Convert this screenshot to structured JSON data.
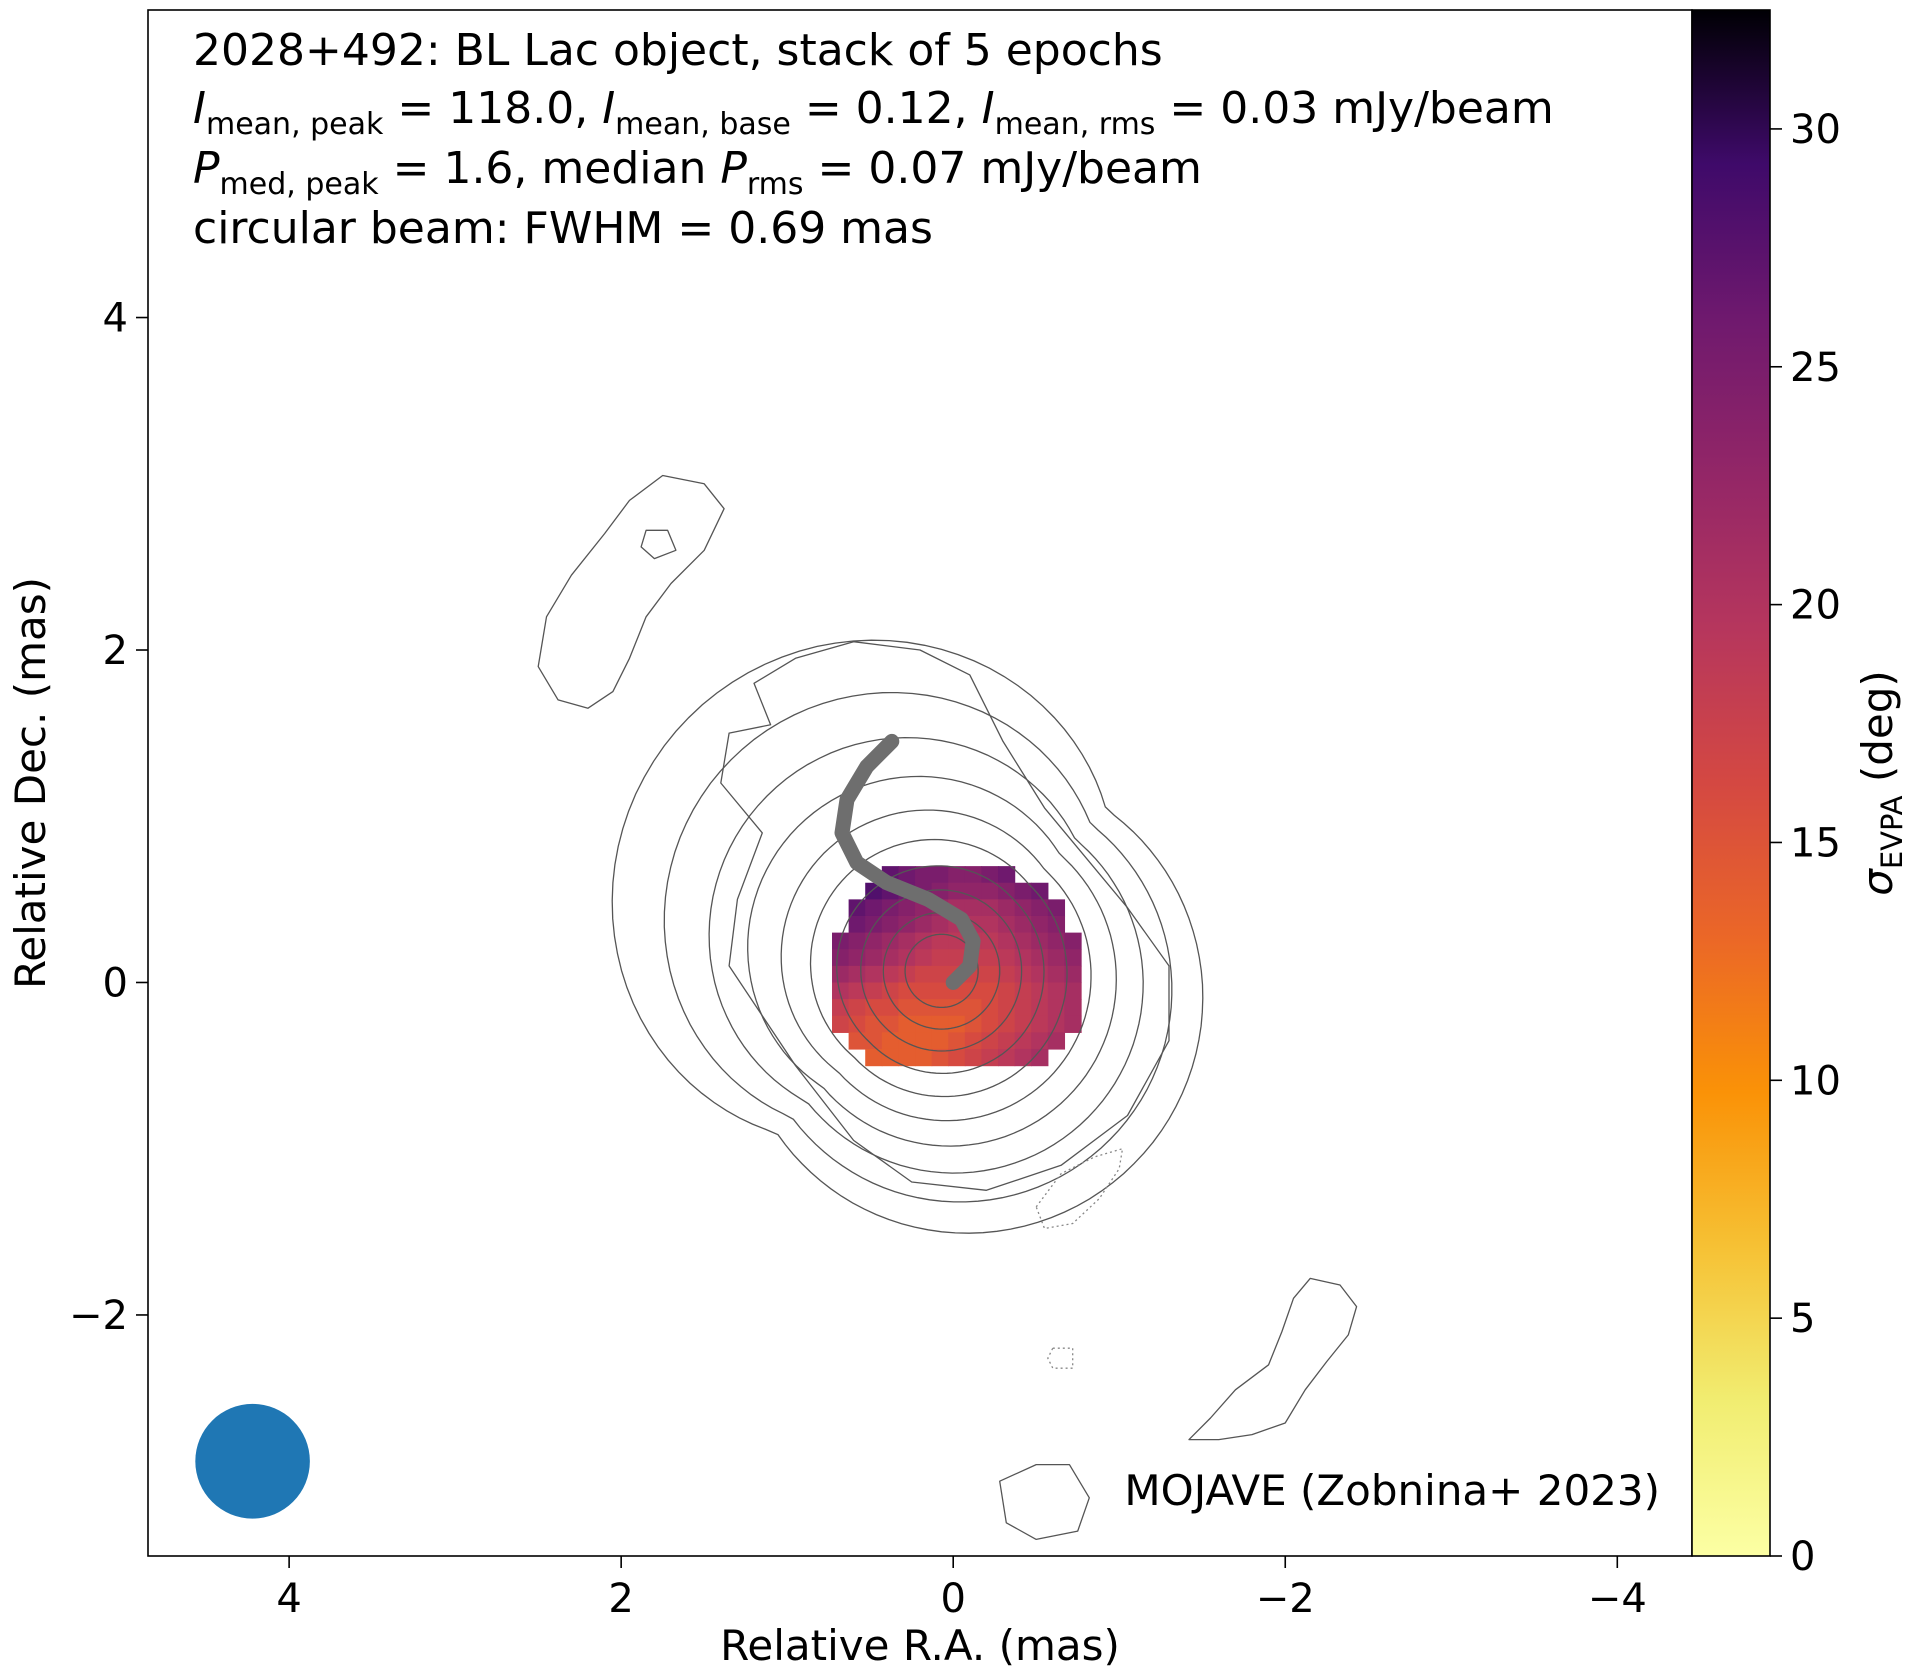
{
  "chart_data": {
    "type": "heatmap",
    "annotation_lines": [
      {
        "text": "2028+492: BL Lac object, stack of 5 epochs"
      },
      {
        "parts": [
          {
            "t": "I",
            "i": true
          },
          {
            "t": "mean, peak",
            "sub": true
          },
          {
            "t": " = 118.0, "
          },
          {
            "t": "I",
            "i": true
          },
          {
            "t": "mean, base",
            "sub": true
          },
          {
            "t": " = 0.12, "
          },
          {
            "t": "I",
            "i": true
          },
          {
            "t": "mean, rms",
            "sub": true
          },
          {
            "t": " = 0.03 mJy/beam"
          }
        ]
      },
      {
        "parts": [
          {
            "t": "P",
            "i": true
          },
          {
            "t": "med, peak",
            "sub": true
          },
          {
            "t": " = 1.6, median "
          },
          {
            "t": "P",
            "i": true
          },
          {
            "t": "rms",
            "sub": true
          },
          {
            "t": " = 0.07 mJy/beam"
          }
        ]
      },
      {
        "text": "circular beam: FWHM = 0.69 mas"
      }
    ],
    "credit": "MOJAVE (Zobnina+ 2023)",
    "xlabel": "Relative R.A. (mas)",
    "ylabel": "Relative Dec. (mas)",
    "xlim": [
      4.85,
      -4.45
    ],
    "ylim": [
      -3.45,
      5.85
    ],
    "xticks": [
      4,
      2,
      0,
      -2,
      -4
    ],
    "xtick_labels": [
      "4",
      "2",
      "0",
      "−2",
      "−4"
    ],
    "yticks": [
      -2,
      0,
      2,
      4
    ],
    "ytick_labels": [
      "−2",
      "0",
      "2",
      "4"
    ],
    "colorbar": {
      "label_main": "σ",
      "label_sub": "EVPA",
      "label_unit": " (deg)",
      "cmap": "inferno_r",
      "vmin": 0,
      "vmax": 32.5,
      "ticks": [
        0,
        5,
        10,
        15,
        20,
        25,
        30
      ],
      "tick_labels": [
        "0",
        "5",
        "10",
        "15",
        "20",
        "25",
        "30"
      ]
    },
    "beam": {
      "ra": 4.22,
      "dec": -2.88,
      "fwhm": 0.69,
      "color": "#1f77b4"
    },
    "contour_color": "#555555",
    "contour_levels": 10,
    "contour_core": {
      "ra": 0.07,
      "dec": 0.07
    },
    "ridge_color": "#6e6e6e",
    "ridge_line": [
      [
        0.0,
        0.0
      ],
      [
        -0.1,
        0.1
      ],
      [
        -0.12,
        0.25
      ],
      [
        -0.05,
        0.38
      ],
      [
        0.15,
        0.5
      ],
      [
        0.4,
        0.6
      ],
      [
        0.58,
        0.72
      ],
      [
        0.67,
        0.9
      ],
      [
        0.64,
        1.1
      ],
      [
        0.52,
        1.3
      ],
      [
        0.37,
        1.45
      ]
    ],
    "evpa_pixel_size": 0.1,
    "evpa_region": {
      "ra": 0.08,
      "dec": 0.06,
      "radius": 0.62
    },
    "evpa_grid_rows": [
      {
        "dec": 0.65,
        "ra_from": 0.43,
        "values": [
          27,
          26,
          25,
          25,
          24,
          24,
          25,
          26
        ]
      },
      {
        "dec": 0.55,
        "ra_from": 0.53,
        "values": [
          28,
          27,
          26,
          25,
          24,
          23,
          23,
          23,
          24,
          25,
          26
        ]
      },
      {
        "dec": 0.45,
        "ra_from": 0.63,
        "values": [
          27,
          26,
          25,
          24,
          23,
          22,
          21,
          21,
          21,
          22,
          23,
          24,
          25
        ]
      },
      {
        "dec": 0.35,
        "ra_from": 0.63,
        "values": [
          26,
          25,
          24,
          23,
          22,
          21,
          20,
          20,
          20,
          21,
          22,
          23,
          24
        ]
      },
      {
        "dec": 0.25,
        "ra_from": 0.73,
        "values": [
          25,
          24,
          23,
          22,
          21,
          20,
          19,
          19,
          19,
          19,
          20,
          21,
          22,
          23,
          24
        ]
      },
      {
        "dec": 0.15,
        "ra_from": 0.73,
        "values": [
          24,
          23,
          22,
          21,
          20,
          19,
          18,
          18,
          18,
          18,
          19,
          20,
          21,
          22,
          23
        ]
      },
      {
        "dec": 0.05,
        "ra_from": 0.73,
        "values": [
          22,
          21,
          20,
          19,
          18,
          17,
          17,
          17,
          17,
          17,
          18,
          19,
          20,
          21,
          22
        ]
      },
      {
        "dec": -0.05,
        "ra_from": 0.73,
        "values": [
          20,
          19,
          18,
          17,
          16,
          16,
          16,
          16,
          16,
          16,
          17,
          18,
          19,
          20,
          21
        ]
      },
      {
        "dec": -0.15,
        "ra_from": 0.73,
        "values": [
          18,
          17,
          16,
          16,
          15,
          15,
          15,
          15,
          15,
          16,
          17,
          18,
          19,
          20,
          21
        ]
      },
      {
        "dec": -0.25,
        "ra_from": 0.73,
        "values": [
          17,
          16,
          15,
          15,
          14,
          14,
          14,
          14,
          15,
          16,
          17,
          18,
          19,
          20,
          21
        ]
      },
      {
        "dec": -0.35,
        "ra_from": 0.63,
        "values": [
          15,
          15,
          14,
          14,
          14,
          14,
          15,
          16,
          17,
          18,
          19,
          20,
          21
        ]
      },
      {
        "dec": -0.45,
        "ra_from": 0.53,
        "values": [
          14,
          14,
          14,
          14,
          15,
          16,
          17,
          18,
          19,
          20,
          21
        ]
      }
    ],
    "islands": [
      {
        "style": "solid",
        "points": [
          [
            2.5,
            1.9
          ],
          [
            2.45,
            2.2
          ],
          [
            2.3,
            2.45
          ],
          [
            2.1,
            2.7
          ],
          [
            1.95,
            2.9
          ],
          [
            1.75,
            3.05
          ],
          [
            1.5,
            3.0
          ],
          [
            1.38,
            2.85
          ],
          [
            1.5,
            2.6
          ],
          [
            1.7,
            2.4
          ],
          [
            1.85,
            2.2
          ],
          [
            1.95,
            1.95
          ],
          [
            2.05,
            1.75
          ],
          [
            2.2,
            1.65
          ],
          [
            2.38,
            1.7
          ]
        ]
      },
      {
        "style": "solid",
        "points": [
          [
            1.85,
            2.72
          ],
          [
            1.72,
            2.72
          ],
          [
            1.67,
            2.6
          ],
          [
            1.8,
            2.55
          ],
          [
            1.88,
            2.62
          ]
        ]
      },
      {
        "style": "solid",
        "points": [
          [
            -0.7,
            -2.9
          ],
          [
            -0.5,
            -2.9
          ],
          [
            -0.28,
            -3.0
          ],
          [
            -0.32,
            -3.25
          ],
          [
            -0.5,
            -3.35
          ],
          [
            -0.75,
            -3.3
          ],
          [
            -0.82,
            -3.1
          ]
        ]
      },
      {
        "style": "solid",
        "points": [
          [
            -1.42,
            -2.75
          ],
          [
            -1.55,
            -2.62
          ],
          [
            -1.7,
            -2.45
          ],
          [
            -1.9,
            -2.3
          ],
          [
            -1.98,
            -2.1
          ],
          [
            -2.05,
            -1.9
          ],
          [
            -2.15,
            -1.78
          ],
          [
            -2.33,
            -1.82
          ],
          [
            -2.43,
            -1.95
          ],
          [
            -2.38,
            -2.12
          ],
          [
            -2.25,
            -2.28
          ],
          [
            -2.12,
            -2.45
          ],
          [
            -2.0,
            -2.65
          ],
          [
            -1.8,
            -2.72
          ],
          [
            -1.6,
            -2.75
          ]
        ]
      },
      {
        "style": "dotted",
        "points": [
          [
            -0.5,
            -1.35
          ],
          [
            -0.65,
            -1.15
          ],
          [
            -0.85,
            -1.05
          ],
          [
            -1.02,
            -1.0
          ],
          [
            -1.0,
            -1.12
          ],
          [
            -0.88,
            -1.3
          ],
          [
            -0.72,
            -1.45
          ],
          [
            -0.55,
            -1.48
          ]
        ]
      },
      {
        "style": "dotted",
        "points": [
          [
            -0.6,
            -2.2
          ],
          [
            -0.72,
            -2.2
          ],
          [
            -0.72,
            -2.32
          ],
          [
            -0.6,
            -2.32
          ],
          [
            -0.57,
            -2.26
          ]
        ]
      }
    ]
  }
}
